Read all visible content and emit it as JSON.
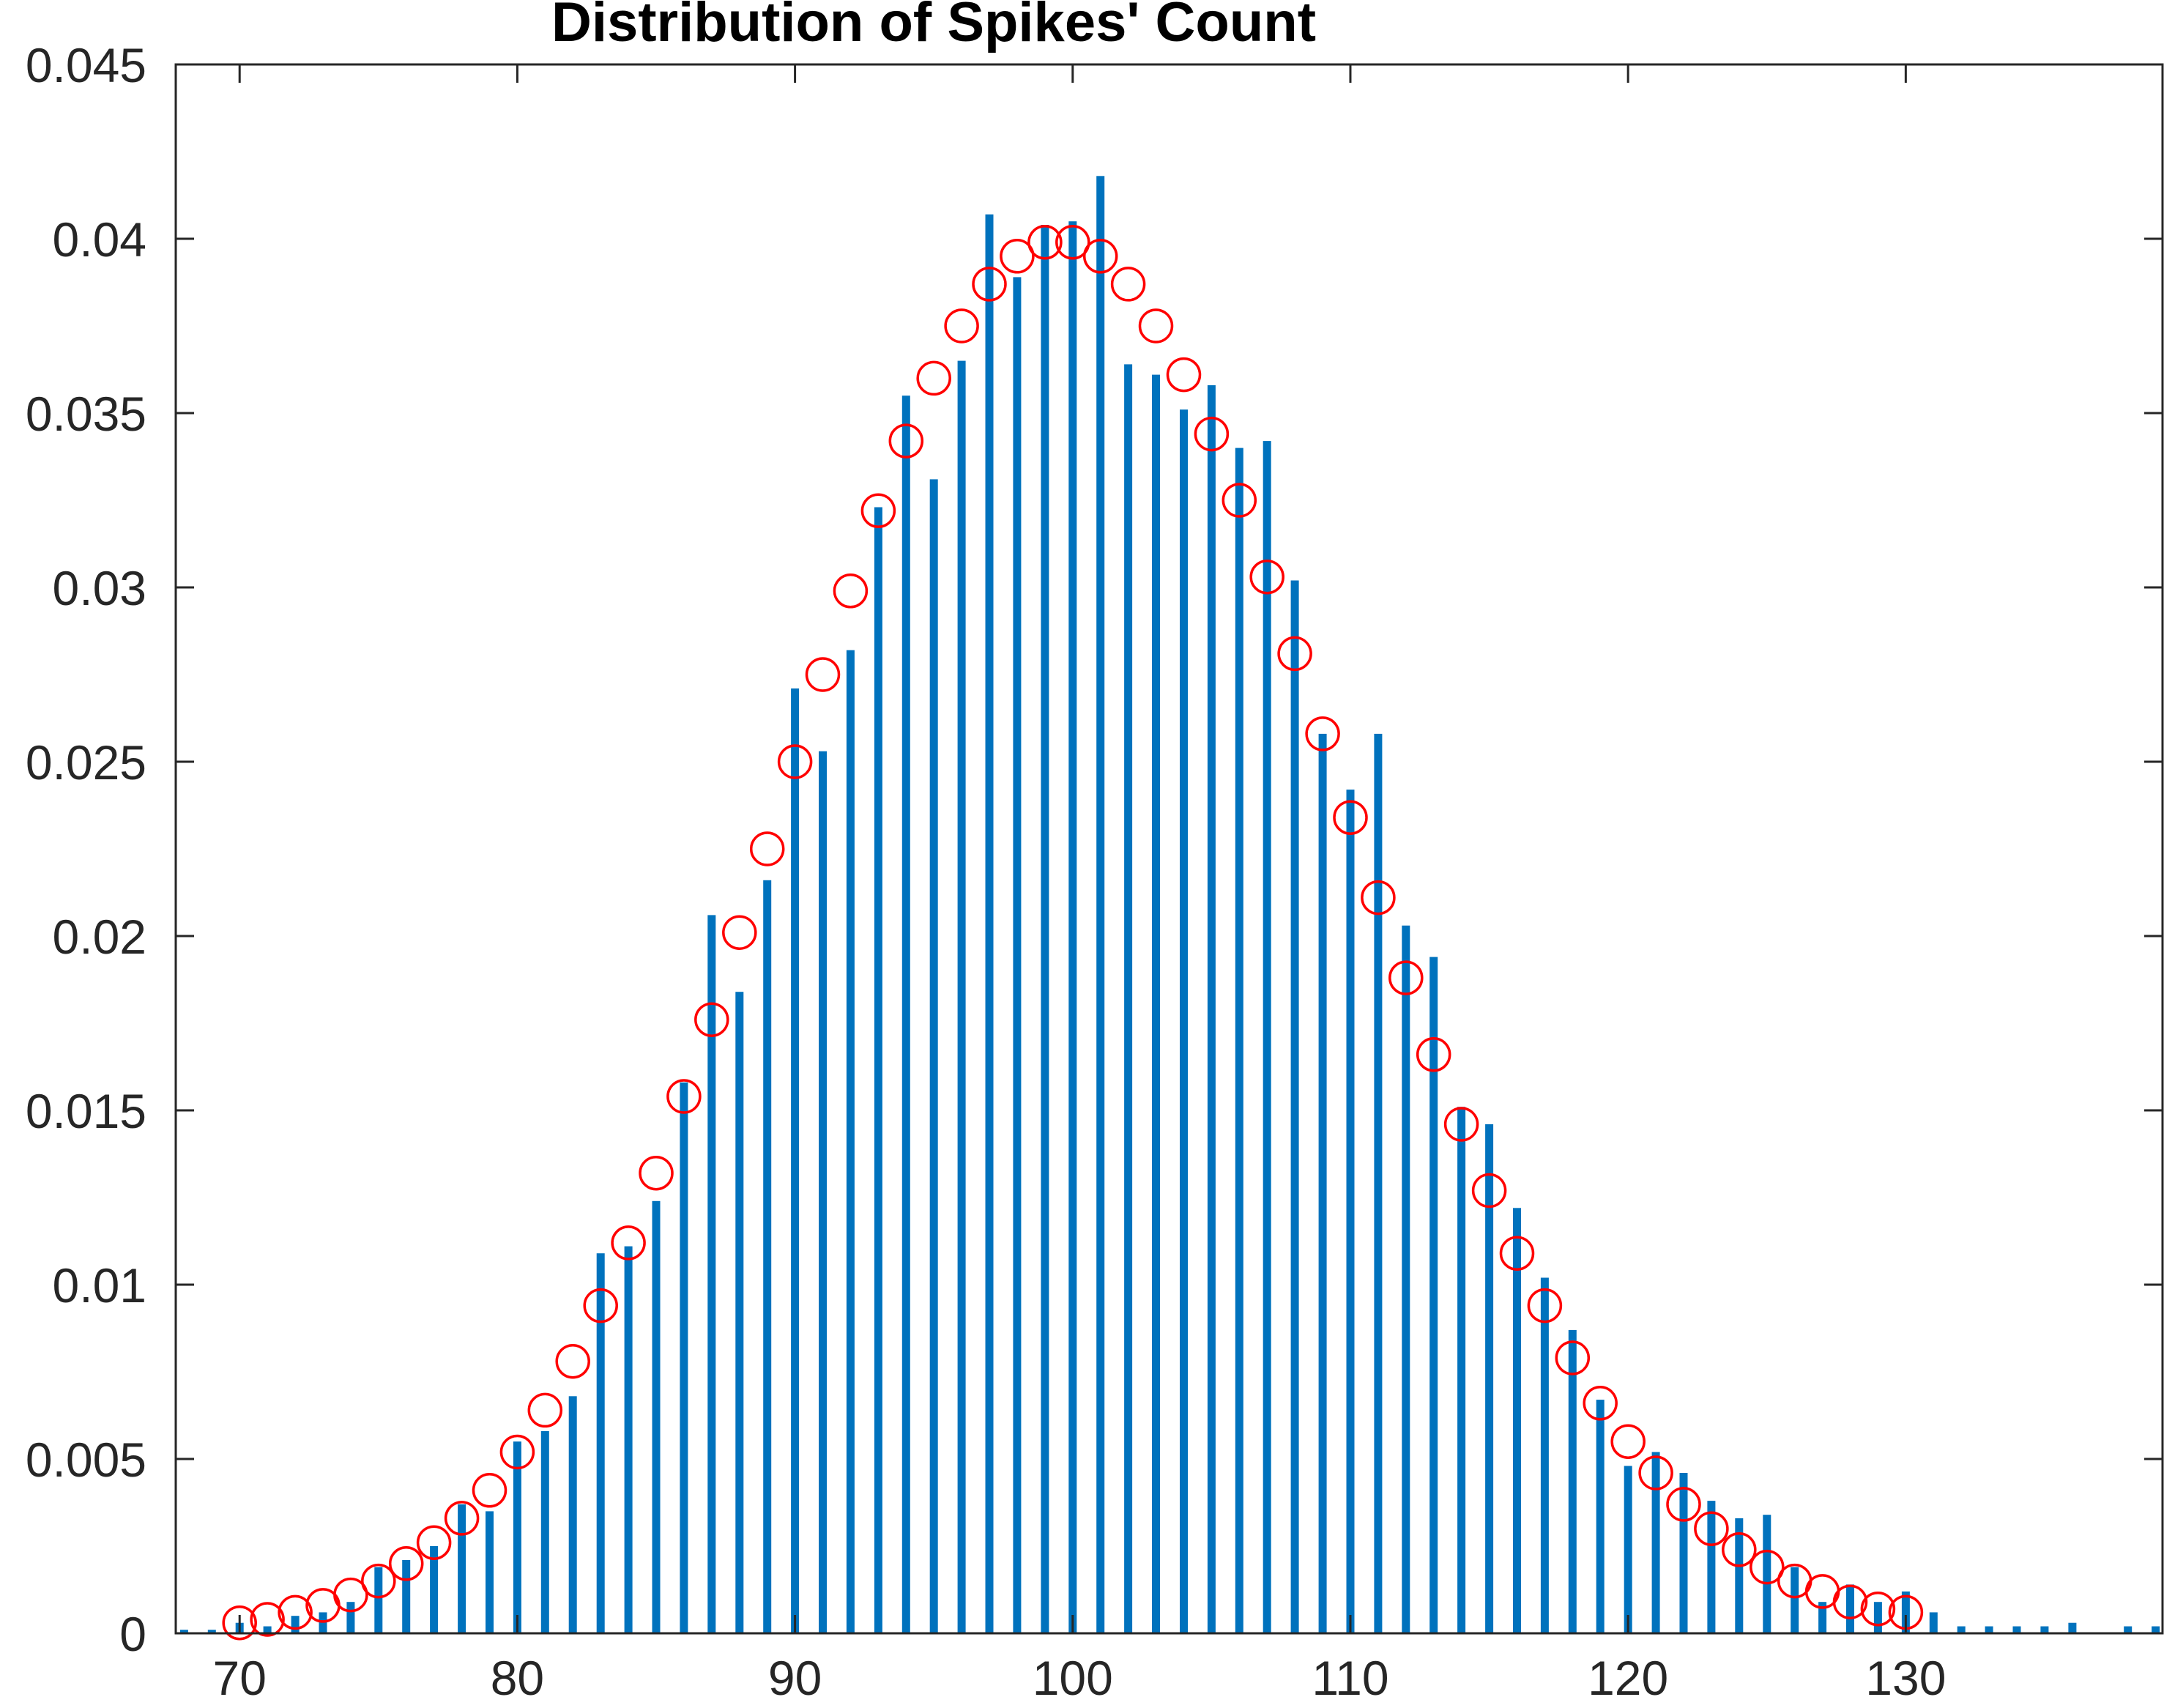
{
  "chart_data": {
    "type": "bar",
    "title": "Distribution of Spikes' Count",
    "xlabel": "",
    "ylabel": "",
    "xlim": [
      67.7,
      139.3
    ],
    "ylim": [
      0,
      0.045
    ],
    "xticks": [
      70,
      80,
      90,
      100,
      110,
      120,
      130
    ],
    "yticks": [
      0,
      0.005,
      0.01,
      0.015,
      0.02,
      0.025,
      0.03,
      0.035,
      0.04,
      0.045
    ],
    "xtick_labels": [
      "70",
      "80",
      "90",
      "100",
      "110",
      "120",
      "130"
    ],
    "ytick_labels": [
      "0",
      "0.005",
      "0.01",
      "0.015",
      "0.02",
      "0.025",
      "0.03",
      "0.035",
      "0.04",
      "0.045"
    ],
    "grid": false,
    "legend": "none",
    "colors": {
      "bars": "#0072BD",
      "markers": "#FF0000",
      "axes": "#262626"
    },
    "series": [
      {
        "type": "bar",
        "x": [
          68,
          69,
          70,
          71,
          72,
          73,
          74,
          75,
          76,
          77,
          78,
          79,
          80,
          81,
          82,
          83,
          84,
          85,
          86,
          87,
          88,
          89,
          90,
          91,
          92,
          93,
          94,
          95,
          96,
          97,
          98,
          99,
          100,
          101,
          102,
          103,
          104,
          105,
          106,
          107,
          108,
          109,
          110,
          111,
          112,
          113,
          114,
          115,
          116,
          117,
          118,
          119,
          120,
          121,
          122,
          123,
          124,
          125,
          126,
          127,
          128,
          129,
          130,
          131,
          132,
          133,
          134,
          135,
          136,
          138,
          139
        ],
        "values": [
          0.0001,
          0.0001,
          0.0003,
          0.0002,
          0.0005,
          0.0006,
          0.0009,
          0.0019,
          0.0021,
          0.0025,
          0.0037,
          0.0035,
          0.0055,
          0.0058,
          0.0068,
          0.0109,
          0.0111,
          0.0124,
          0.0158,
          0.0206,
          0.0184,
          0.0216,
          0.0271,
          0.0253,
          0.0282,
          0.0323,
          0.0355,
          0.0331,
          0.0365,
          0.0407,
          0.0389,
          0.0404,
          0.0405,
          0.0418,
          0.0364,
          0.0361,
          0.0351,
          0.0358,
          0.034,
          0.0342,
          0.0302,
          0.0258,
          0.0242,
          0.0258,
          0.0203,
          0.0194,
          0.0151,
          0.0146,
          0.0122,
          0.0102,
          0.0087,
          0.0067,
          0.0048,
          0.0052,
          0.0046,
          0.0038,
          0.0033,
          0.0034,
          0.0019,
          0.0009,
          0.0014,
          0.0009,
          0.0012,
          0.0006,
          0.0002,
          0.0002,
          0.0002,
          0.0002,
          0.0003,
          0.0002,
          0.0002
        ]
      },
      {
        "type": "scatter",
        "marker": "circle-open",
        "x": [
          70,
          71,
          72,
          73,
          74,
          75,
          76,
          77,
          78,
          79,
          80,
          81,
          82,
          83,
          84,
          85,
          86,
          87,
          88,
          89,
          90,
          91,
          92,
          93,
          94,
          95,
          96,
          97,
          98,
          99,
          100,
          101,
          102,
          103,
          104,
          105,
          106,
          107,
          108,
          109,
          110,
          111,
          112,
          113,
          114,
          115,
          116,
          117,
          118,
          119,
          120,
          121,
          122,
          123,
          124,
          125,
          126,
          127,
          128,
          129,
          130
        ],
        "values": [
          0.0003,
          0.0004,
          0.0006,
          0.0008,
          0.0011,
          0.0015,
          0.002,
          0.0026,
          0.0033,
          0.0041,
          0.0052,
          0.0064,
          0.0078,
          0.0094,
          0.0112,
          0.0132,
          0.0154,
          0.0176,
          0.0201,
          0.0225,
          0.025,
          0.0275,
          0.0299,
          0.0322,
          0.0342,
          0.036,
          0.0375,
          0.0387,
          0.0395,
          0.0399,
          0.0399,
          0.0395,
          0.0387,
          0.0375,
          0.0361,
          0.0344,
          0.0325,
          0.0303,
          0.0281,
          0.0258,
          0.0234,
          0.0211,
          0.0188,
          0.0166,
          0.0146,
          0.0127,
          0.0109,
          0.0094,
          0.0079,
          0.0066,
          0.0055,
          0.0046,
          0.0037,
          0.003,
          0.0024,
          0.0019,
          0.0015,
          0.0012,
          0.0009,
          0.0007,
          0.0006
        ]
      }
    ]
  }
}
